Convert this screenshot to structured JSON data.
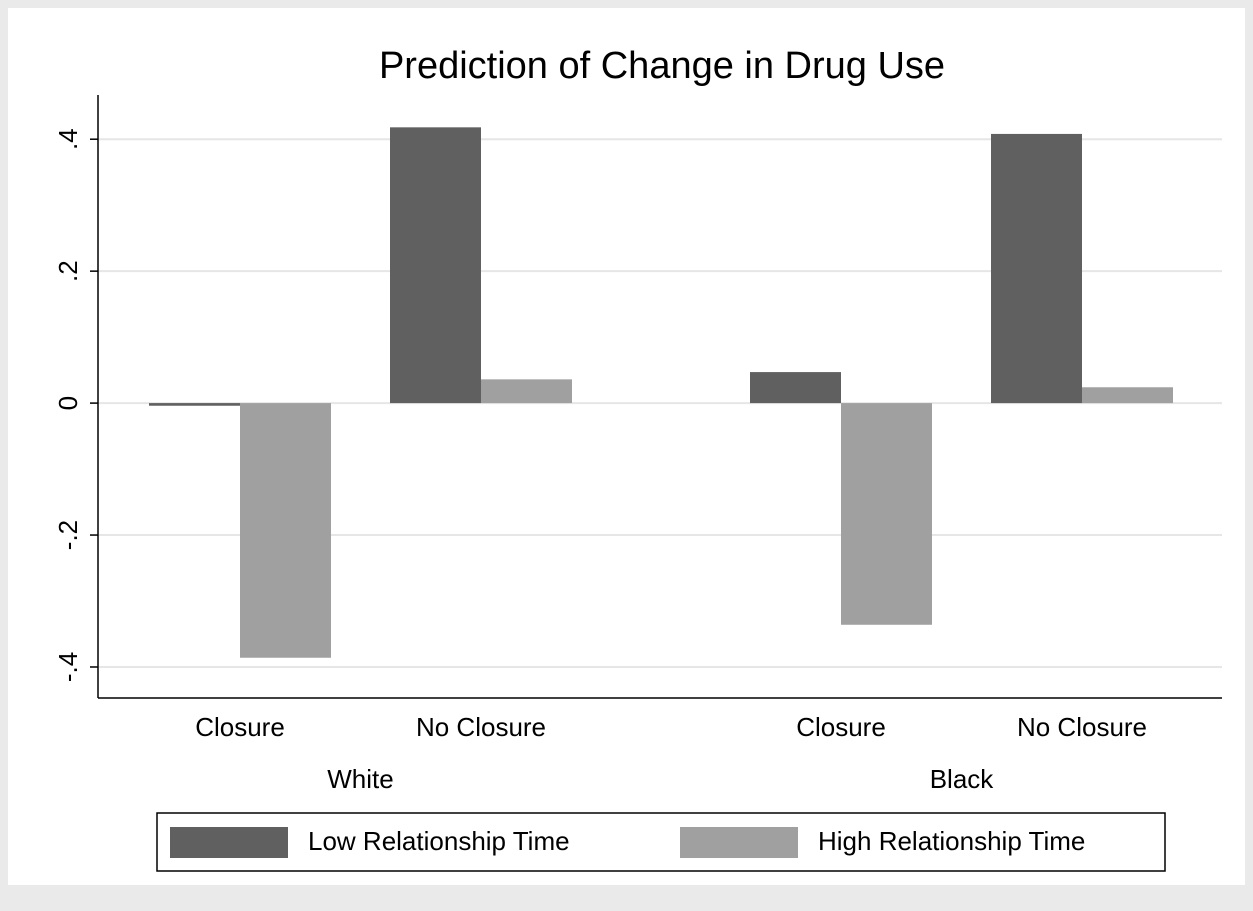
{
  "chart_data": {
    "type": "bar",
    "title": "Prediction of Change in Drug Use",
    "groups": [
      {
        "name": "White",
        "categories": [
          "Closure",
          "No Closure"
        ]
      },
      {
        "name": "Black",
        "categories": [
          "Closure",
          "No Closure"
        ]
      }
    ],
    "series": [
      {
        "name": "Low Relationship Time",
        "color": "#606060",
        "values": [
          -0.004,
          0.418,
          0.047,
          0.408
        ]
      },
      {
        "name": "High Relationship Time",
        "color": "#a0a0a0",
        "values": [
          -0.386,
          0.036,
          -0.336,
          0.024
        ]
      }
    ],
    "ylim": [
      -0.447,
      0.467
    ],
    "yticks": [
      {
        "value": -0.4,
        "label": "-.4"
      },
      {
        "value": -0.2,
        "label": "-.2"
      },
      0,
      {
        "value": 0.2,
        "label": ".2"
      },
      {
        "value": 0.4,
        "label": ".4"
      }
    ],
    "grid": true,
    "legend": "bottom"
  }
}
